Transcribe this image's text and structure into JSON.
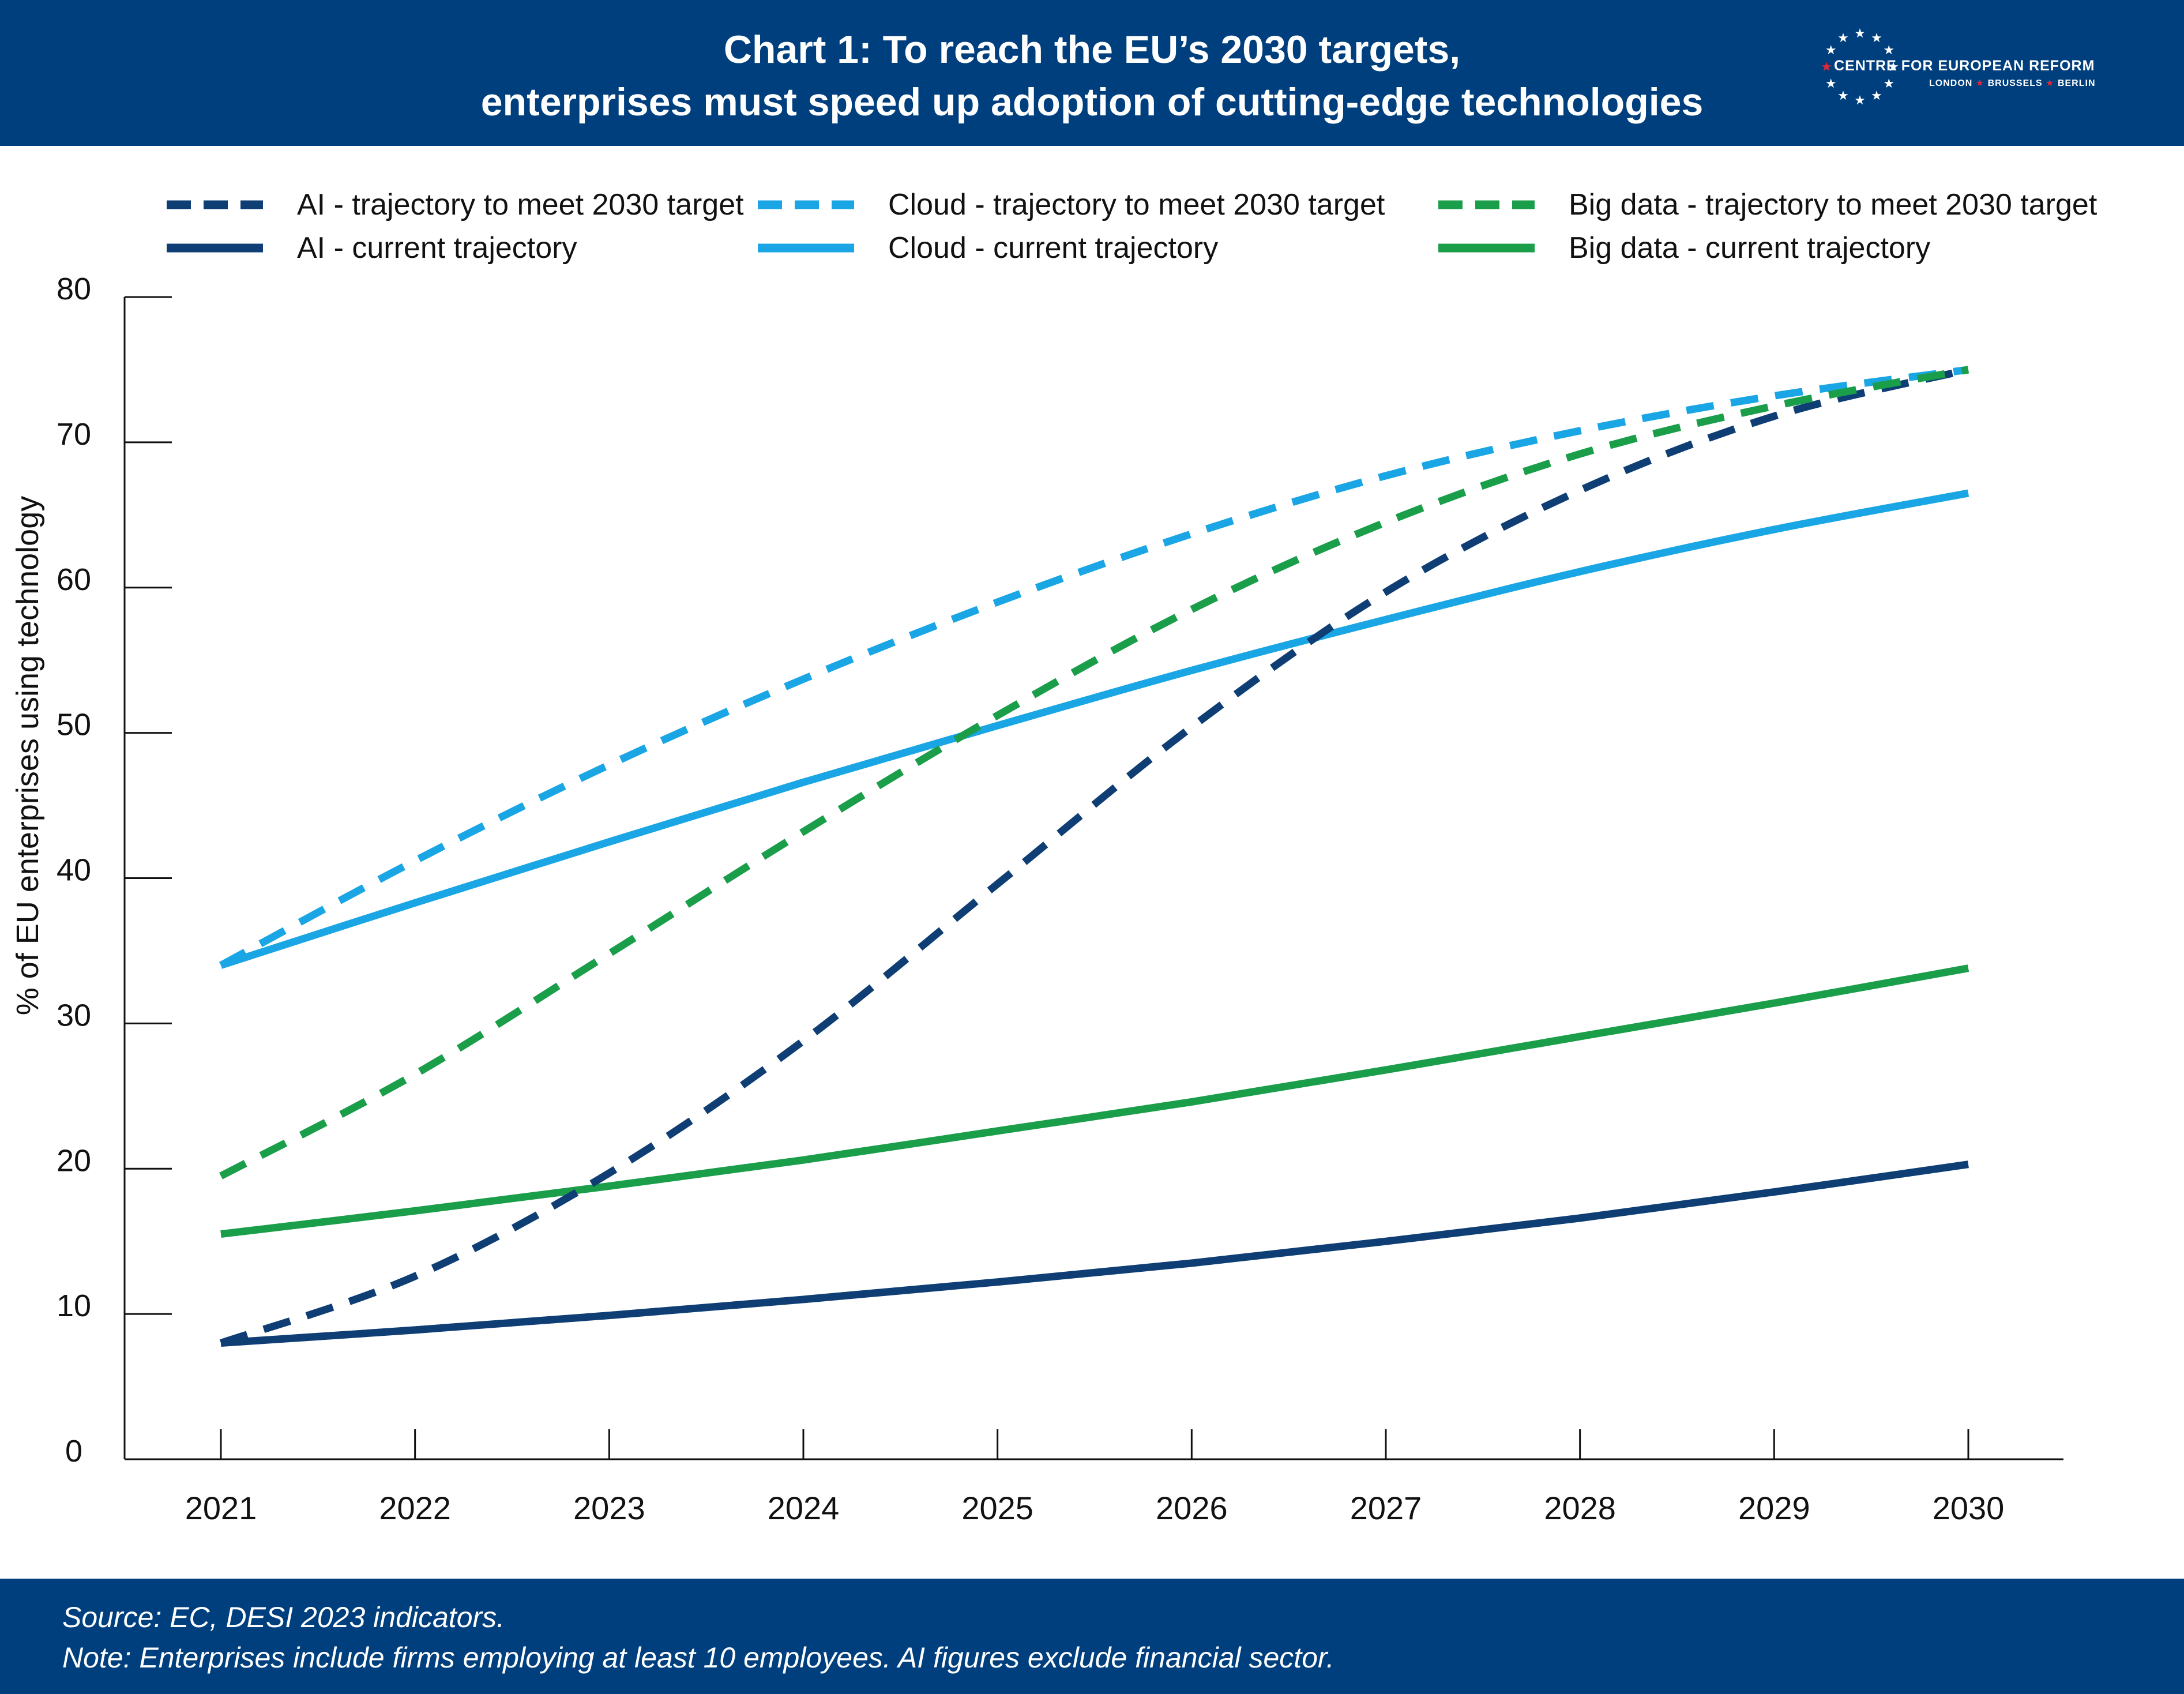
{
  "header": {
    "title_line1": "Chart 1: To reach the EU’s 2030 targets,",
    "title_line2": "enterprises must speed up adoption of cutting-edge technologies",
    "logo_name": "CENTRE FOR EUROPEAN REFORM",
    "logo_cities": [
      "LONDON",
      "BRUSSELS",
      "BERLIN"
    ]
  },
  "footer": {
    "source": "Source: EC, DESI 2023 indicators.",
    "note": "Note: Enterprises include firms employing at least 10 employees. AI figures exclude financial sector."
  },
  "colors": {
    "header_bg": "#003f7d",
    "ai": "#0e3e74",
    "cloud": "#1aa6e4",
    "big_data": "#1a9e4a",
    "logo_star_accent": "#e4273a"
  },
  "chart_data": {
    "type": "line",
    "ylabel": "% of EU enterprises using technology",
    "xlabel": "",
    "ylim": [
      0,
      80
    ],
    "yticks": [
      0,
      10,
      20,
      30,
      40,
      50,
      60,
      70,
      80
    ],
    "x": [
      "2021",
      "2022",
      "2023",
      "2024",
      "2025",
      "2026",
      "2027",
      "2028",
      "2029",
      "2030"
    ],
    "grid": false,
    "legend_position": "top",
    "series": [
      {
        "name": "AI - trajectory to meet 2030 target",
        "style": "dashed",
        "color_key": "ai",
        "values": [
          8,
          12.6,
          19.7,
          28.8,
          39.6,
          50.4,
          59.7,
          66.7,
          71.8,
          75
        ]
      },
      {
        "name": "Cloud - trajectory to meet 2030 target",
        "style": "dashed",
        "color_key": "cloud",
        "values": [
          34,
          41.2,
          47.8,
          53.7,
          59,
          63.7,
          67.7,
          70.8,
          73.2,
          75
        ]
      },
      {
        "name": "Big data - trajectory to meet 2030 target",
        "style": "dashed",
        "color_key": "big_data",
        "values": [
          19.5,
          26.5,
          34.8,
          43.2,
          51.2,
          58.5,
          64.5,
          69.2,
          72.5,
          75
        ]
      },
      {
        "name": "AI - current trajectory",
        "style": "solid",
        "color_key": "ai",
        "values": [
          8,
          8.9,
          9.9,
          11,
          12.2,
          13.5,
          15,
          16.6,
          18.4,
          20.3
        ]
      },
      {
        "name": "Cloud - current trajectory",
        "style": "solid",
        "color_key": "cloud",
        "values": [
          34,
          38.3,
          42.5,
          46.6,
          50.5,
          54.3,
          57.8,
          61.1,
          64,
          66.5
        ]
      },
      {
        "name": "Big data - current trajectory",
        "style": "solid",
        "color_key": "big_data",
        "values": [
          15.5,
          17.1,
          18.8,
          20.6,
          22.6,
          24.6,
          26.8,
          29.1,
          31.4,
          33.8
        ]
      }
    ]
  }
}
